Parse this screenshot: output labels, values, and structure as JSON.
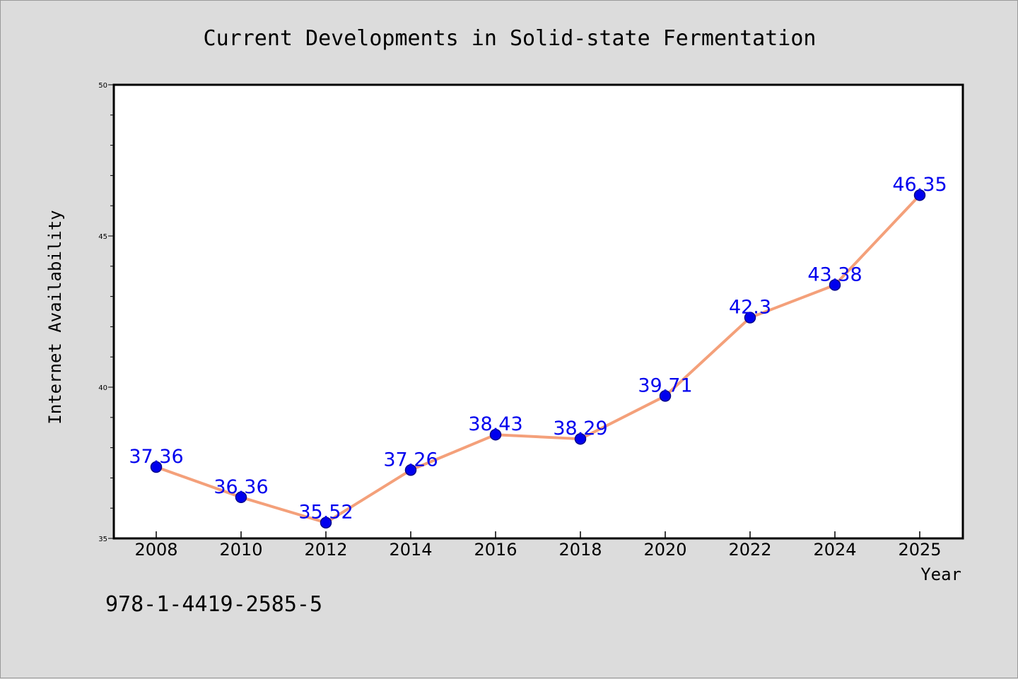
{
  "chart_data": {
    "type": "line",
    "title": "Current Developments in Solid-state Fermentation",
    "xlabel": "Year",
    "ylabel": "Internet Availability",
    "categories": [
      "2008",
      "2010",
      "2012",
      "2014",
      "2016",
      "2018",
      "2020",
      "2022",
      "2024",
      "2025"
    ],
    "series": [
      {
        "values": [
          37.36,
          36.36,
          35.52,
          37.26,
          38.43,
          38.29,
          39.71,
          42.3,
          43.38,
          46.35
        ],
        "data_labels": [
          "37.36",
          "36.36",
          "35.52",
          "37.26",
          "38.43",
          "38.29",
          "39.71",
          "42.3",
          "43.38",
          "46.35"
        ]
      }
    ],
    "ylim": [
      35,
      50
    ],
    "yticks": [
      35,
      40,
      45,
      50
    ],
    "ytick_labels": [
      "35",
      "40",
      "45",
      "50"
    ],
    "grid": false,
    "colors": {
      "line": "#f4a07a",
      "marker": "#0000ee",
      "marker_edge": "#00008b",
      "data_label": "#0000ee",
      "background": "#dcdcdc",
      "plot_background": "#ffffff"
    }
  },
  "footnote": "978-1-4419-2585-5"
}
